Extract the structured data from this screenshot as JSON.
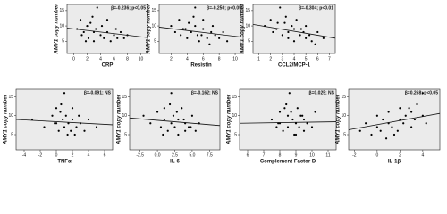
{
  "chart_data": [
    {
      "type": "scatter",
      "annotation": "β=-0.236; p<0.05",
      "x_label": "CRP",
      "y_label": "AMY1 copy number",
      "xlim": [
        -1,
        11
      ],
      "xticks": [
        0,
        2,
        4,
        6,
        8,
        10
      ],
      "ylim": [
        1,
        17
      ],
      "yticks": [
        5,
        10,
        15
      ],
      "x": [
        0.5,
        1,
        1.2,
        1.5,
        2,
        2.2,
        2.5,
        3,
        3,
        3.3,
        3.5,
        4,
        4.2,
        4.5,
        5,
        5,
        5.5,
        6,
        6.3,
        6.5,
        7,
        7.5,
        8,
        2.8,
        1.8
      ],
      "y": [
        9,
        12,
        7,
        8,
        10,
        6,
        11,
        8,
        5,
        9,
        16,
        7,
        10,
        6,
        8,
        12,
        5,
        7,
        9,
        6,
        8,
        6,
        7,
        13,
        5
      ],
      "fit": {
        "x": [
          -1,
          11
        ],
        "y": [
          9.3,
          6.2
        ]
      }
    },
    {
      "type": "scatter",
      "annotation": "β=-0.250; p<0.05",
      "x_label": "Resistin",
      "y_label": "AMY1 copy number",
      "xlim": [
        0.5,
        11
      ],
      "xticks": [
        2,
        4,
        6,
        8,
        10
      ],
      "ylim": [
        1,
        17
      ],
      "yticks": [
        5,
        10,
        15
      ],
      "x": [
        2,
        2.5,
        3,
        3.2,
        3.5,
        4,
        4.2,
        4.5,
        5,
        5,
        5.3,
        5.5,
        6,
        6,
        6.5,
        7,
        7.2,
        7.5,
        8,
        8.5,
        9,
        4.8,
        3.8,
        6.8,
        5.8
      ],
      "y": [
        10,
        8,
        12,
        7,
        9,
        6,
        11,
        8,
        16,
        10,
        7,
        5,
        9,
        12,
        6,
        8,
        10,
        7,
        6,
        8,
        5,
        13,
        9,
        4,
        7
      ],
      "fit": {
        "x": [
          0.5,
          11
        ],
        "y": [
          9.6,
          6.3
        ]
      }
    },
    {
      "type": "scatter",
      "annotation": "β=-0.304; p<0.01",
      "x_label": "CCL2/MCP-1",
      "y_label": "AMY1 copy number",
      "xlim": [
        0.5,
        7.5
      ],
      "xticks": [
        1,
        2,
        3,
        4,
        5,
        6,
        7
      ],
      "ylim": [
        1,
        17
      ],
      "yticks": [
        5,
        10,
        15
      ],
      "x": [
        1.5,
        2,
        2.2,
        2.5,
        2.8,
        3,
        3.2,
        3.5,
        3.5,
        3.8,
        4,
        4,
        4.2,
        4.5,
        4.8,
        5,
        5,
        5.3,
        5.5,
        6,
        6.5,
        3.3,
        2.6,
        4.6,
        5.8
      ],
      "y": [
        10,
        12,
        8,
        9,
        16,
        7,
        11,
        8,
        6,
        10,
        9,
        5,
        12,
        7,
        8,
        6,
        10,
        7,
        5,
        8,
        6,
        13,
        11,
        9,
        4
      ],
      "fit": {
        "x": [
          0.5,
          7.5
        ],
        "y": [
          10.5,
          6
        ]
      }
    },
    {
      "type": "scatter",
      "annotation": "β=-0.091; NS",
      "x_label": "TNFα",
      "y_label": "AMY1 copy number",
      "xlim": [
        -5,
        7
      ],
      "xticks": [
        -4,
        -2,
        0,
        2,
        4,
        6
      ],
      "ylim": [
        1,
        17
      ],
      "yticks": [
        5,
        10,
        15
      ],
      "x": [
        -3,
        -1.5,
        -0.5,
        0,
        0,
        0.3,
        0.5,
        0.8,
        1,
        1,
        1.2,
        1.5,
        1.8,
        2,
        2,
        2.3,
        2.5,
        3,
        3.5,
        4,
        5,
        0.6,
        1.4,
        -0.2,
        2.8
      ],
      "y": [
        9,
        7,
        10,
        12,
        8,
        6,
        11,
        9,
        16,
        7,
        10,
        8,
        6,
        12,
        9,
        5,
        7,
        8,
        6,
        9,
        7,
        13,
        5,
        8,
        10
      ],
      "fit": {
        "x": [
          -5,
          7
        ],
        "y": [
          9,
          7.6
        ]
      }
    },
    {
      "type": "scatter",
      "annotation": "β=-0.162; NS",
      "x_label": "IL-6",
      "y_label": "AMY1 copy number",
      "xlim": [
        -4,
        9
      ],
      "xticks": [
        -2.5,
        {
          "value": 0,
          "label": "0.0"
        },
        2.5,
        {
          "value": 5,
          "label": "5.0"
        },
        7.5
      ],
      "ylim": [
        1,
        17
      ],
      "yticks": [
        5,
        10,
        15
      ],
      "x": [
        -2,
        -1,
        0,
        0.5,
        1,
        1,
        1.5,
        2,
        2,
        2.3,
        2.5,
        3,
        3,
        3.5,
        4,
        4,
        4.5,
        5,
        5.5,
        6,
        1.8,
        2.8,
        0.8,
        3.8,
        4.8
      ],
      "y": [
        10,
        8,
        11,
        7,
        9,
        12,
        6,
        16,
        8,
        10,
        7,
        9,
        5,
        12,
        8,
        6,
        7,
        10,
        6,
        8,
        13,
        11,
        5,
        9,
        7
      ],
      "fit": {
        "x": [
          -4,
          9
        ],
        "y": [
          9.4,
          7.4
        ]
      }
    },
    {
      "type": "scatter",
      "annotation": "β=0.025; NS",
      "x_label": "Complement Factor D",
      "y_label": "AMY1 copy number",
      "xlim": [
        5.5,
        11.5
      ],
      "xticks": [
        6,
        7,
        8,
        9,
        10,
        11
      ],
      "ylim": [
        1,
        17
      ],
      "yticks": [
        5,
        10,
        15
      ],
      "x": [
        7.5,
        7.8,
        8,
        8,
        8.2,
        8.3,
        8.5,
        8.5,
        8.6,
        8.8,
        9,
        9,
        9.1,
        9.2,
        9.3,
        9.5,
        9.5,
        9.7,
        10,
        10.2,
        8.4,
        8.9,
        9.4,
        7.9,
        8.7
      ],
      "y": [
        9,
        7,
        11,
        8,
        6,
        12,
        10,
        7,
        16,
        9,
        8,
        5,
        12,
        7,
        10,
        9,
        6,
        8,
        7,
        11,
        13,
        5,
        10,
        8,
        11
      ],
      "fit": {
        "x": [
          5.5,
          11.5
        ],
        "y": [
          8,
          8.4
        ]
      }
    },
    {
      "type": "scatter",
      "annotation": "β=0.268; p<0.05",
      "x_label": "IL-1β",
      "y_label": "AMY1 copy number",
      "xlim": [
        -2.5,
        5.5
      ],
      "xticks": [
        -2,
        0,
        2,
        4
      ],
      "ylim": [
        1,
        17
      ],
      "yticks": [
        5,
        10,
        15
      ],
      "x": [
        -1.5,
        -1,
        -0.5,
        0,
        0,
        0.3,
        0.5,
        1,
        1,
        1.3,
        1.5,
        2,
        2,
        2.3,
        2.5,
        3,
        3,
        3.3,
        3.5,
        4,
        4,
        4.3,
        0.8,
        1.8,
        2.8
      ],
      "y": [
        6,
        8,
        5,
        7,
        10,
        6,
        9,
        8,
        11,
        7,
        5,
        9,
        12,
        8,
        10,
        7,
        11,
        9,
        13,
        10,
        16,
        8,
        4,
        6,
        12
      ],
      "fit": {
        "x": [
          -2.5,
          5.5
        ],
        "y": [
          6.3,
          10.6
        ]
      }
    }
  ]
}
